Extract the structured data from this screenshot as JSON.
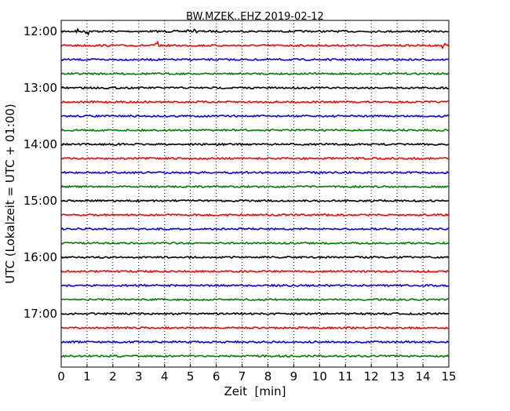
{
  "chart_data": {
    "type": "line",
    "title": "BW.MZEK..EHZ 2019-02-12",
    "xlabel": "Zeit  [min]",
    "ylabel": "UTC (Lokalzeit = UTC + 01:00)",
    "xlim": [
      0,
      15
    ],
    "x_ticks": [
      "0",
      "1",
      "2",
      "3",
      "4",
      "5",
      "6",
      "7",
      "8",
      "9",
      "10",
      "11",
      "12",
      "13",
      "14",
      "15"
    ],
    "y_ticks": [
      "12:00",
      "13:00",
      "14:00",
      "15:00",
      "16:00",
      "17:00"
    ],
    "grid": "vertical dotted at each minute",
    "colors": [
      "#000000",
      "#ff0000",
      "#0000ff",
      "#008000"
    ],
    "traces": [
      {
        "start": "12:00",
        "events": [
          0.6,
          1.0,
          4.9,
          5.2
        ]
      },
      {
        "start": "12:15",
        "events": [
          3.7,
          14.8
        ]
      },
      {
        "start": "12:30",
        "events": []
      },
      {
        "start": "12:45",
        "events": []
      },
      {
        "start": "13:00",
        "events": []
      },
      {
        "start": "13:15",
        "events": []
      },
      {
        "start": "13:30",
        "events": []
      },
      {
        "start": "13:45",
        "events": [
          6.7
        ]
      },
      {
        "start": "14:00",
        "events": []
      },
      {
        "start": "14:15",
        "events": []
      },
      {
        "start": "14:30",
        "events": []
      },
      {
        "start": "14:45",
        "events": []
      },
      {
        "start": "15:00",
        "events": []
      },
      {
        "start": "15:15",
        "events": []
      },
      {
        "start": "15:30",
        "events": []
      },
      {
        "start": "15:45",
        "events": []
      },
      {
        "start": "16:00",
        "events": []
      },
      {
        "start": "16:15",
        "events": []
      },
      {
        "start": "16:30",
        "events": []
      },
      {
        "start": "16:45",
        "events": []
      },
      {
        "start": "17:00",
        "events": []
      },
      {
        "start": "17:15",
        "events": []
      },
      {
        "start": "17:30",
        "events": []
      },
      {
        "start": "17:45",
        "events": []
      }
    ]
  }
}
